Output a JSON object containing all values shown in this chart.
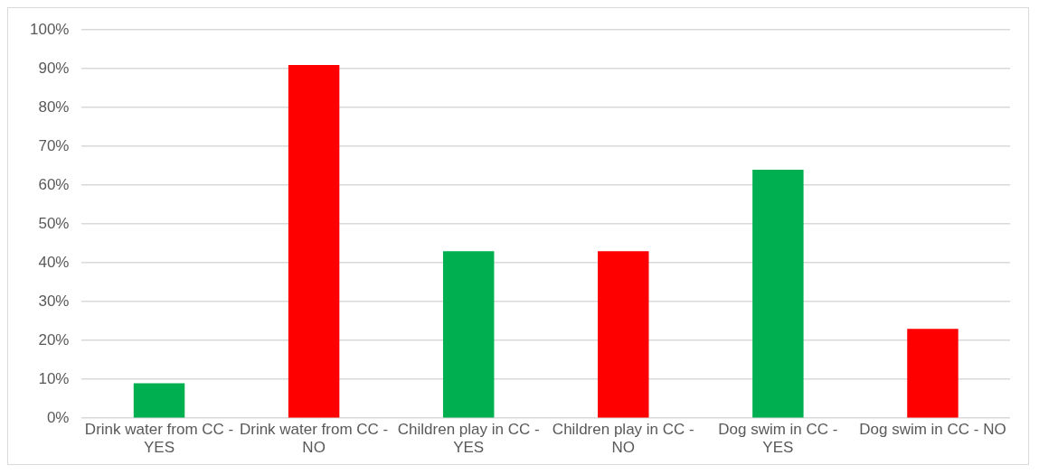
{
  "chart_data": {
    "type": "bar",
    "categories": [
      "Drink water from CC - YES",
      "Drink water from CC - NO",
      "Children play in CC - YES",
      "Children play in CC - NO",
      "Dog swim in CC - YES",
      "Dog swim in CC - NO"
    ],
    "values": [
      9,
      91,
      43,
      43,
      64,
      23
    ],
    "colors": [
      "#00b050",
      "#ff0000",
      "#00b050",
      "#ff0000",
      "#00b050",
      "#ff0000"
    ],
    "ylim": [
      0,
      100
    ],
    "yticks": [
      {
        "value": 0,
        "label": "0%"
      },
      {
        "value": 10,
        "label": "10%"
      },
      {
        "value": 20,
        "label": "20%"
      },
      {
        "value": 30,
        "label": "30%"
      },
      {
        "value": 40,
        "label": "40%"
      },
      {
        "value": 50,
        "label": "50%"
      },
      {
        "value": 60,
        "label": "60%"
      },
      {
        "value": 70,
        "label": "70%"
      },
      {
        "value": 80,
        "label": "80%"
      },
      {
        "value": 90,
        "label": "90%"
      },
      {
        "value": 100,
        "label": "100%"
      }
    ],
    "grid": "y",
    "legend": false
  }
}
